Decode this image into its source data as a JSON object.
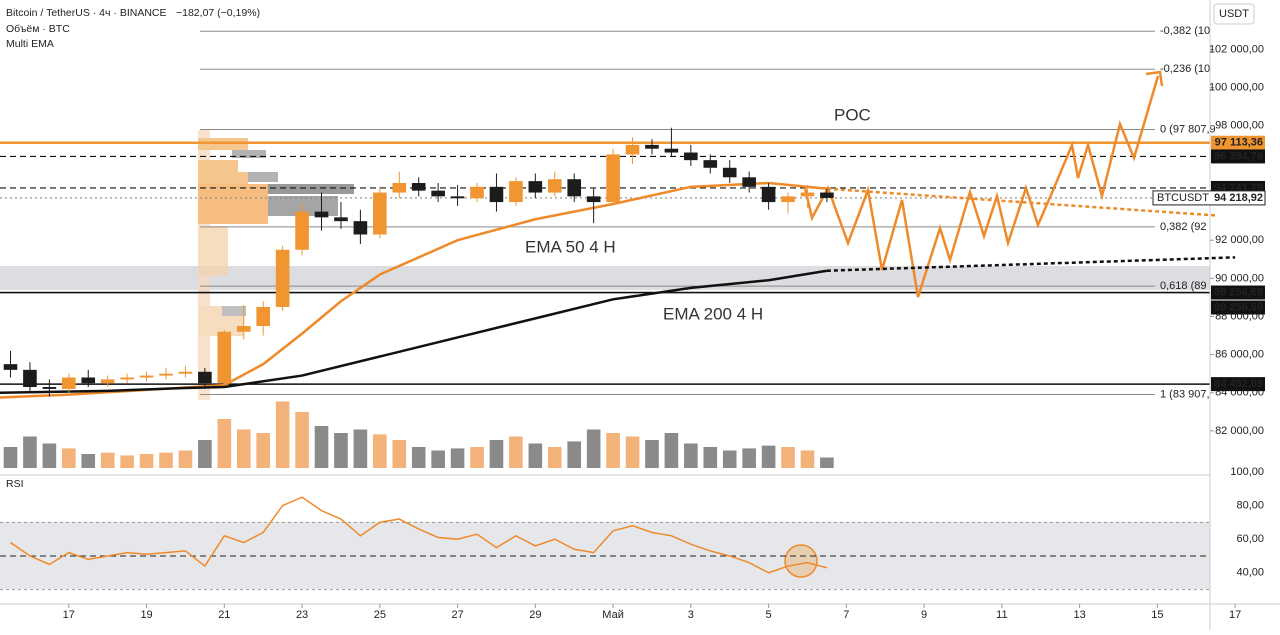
{
  "chart_data": {
    "type": "candlestick",
    "header": {
      "symbol": "Bitcoin / TetherUS · 4ч · BINANCE",
      "change": "−182,07 (−0,19%)",
      "volume_title": "Объём · BTC",
      "ema_title": "Multi EMA",
      "rsi_title": "RSI",
      "currency": "USDT"
    },
    "xlim": [
      15.23,
      48
    ],
    "xticks": [
      {
        "value": 17,
        "label": "17"
      },
      {
        "value": 19,
        "label": "19"
      },
      {
        "value": 21,
        "label": "21"
      },
      {
        "value": 23,
        "label": "23"
      },
      {
        "value": 25,
        "label": "25"
      },
      {
        "value": 27,
        "label": "27"
      },
      {
        "value": 29,
        "label": "29"
      },
      {
        "value": 31,
        "label": "Май"
      },
      {
        "value": 33,
        "label": "3"
      },
      {
        "value": 35,
        "label": "5"
      },
      {
        "value": 37,
        "label": "7"
      },
      {
        "value": 39,
        "label": "9"
      },
      {
        "value": 41,
        "label": "11"
      },
      {
        "value": 43,
        "label": "13"
      },
      {
        "value": 45,
        "label": "15"
      },
      {
        "value": 47,
        "label": "17"
      }
    ],
    "ylim": [
      80000,
      104600
    ],
    "yticks": [
      {
        "value": 102000,
        "label": "102 000,00"
      },
      {
        "value": 100000,
        "label": "100 000,00"
      },
      {
        "value": 98000,
        "label": "98 000,00"
      },
      {
        "value": 92000,
        "label": "92 000,00"
      },
      {
        "value": 90000,
        "label": "90 000,00"
      },
      {
        "value": 88000,
        "label": "88 000,00"
      },
      {
        "value": 86000,
        "label": "86 000,00"
      },
      {
        "value": 84000,
        "label": "84 000,00"
      },
      {
        "value": 82000,
        "label": "82 000,00"
      }
    ],
    "x": [
      15.5,
      16,
      16.5,
      17,
      17.5,
      18,
      18.5,
      19,
      19.5,
      20,
      20.5,
      21,
      21.5,
      22,
      22.5,
      23,
      23.5,
      24,
      24.5,
      25,
      25.5,
      26,
      26.5,
      27,
      27.5,
      28,
      28.5,
      29,
      29.5,
      30,
      30.5,
      31,
      31.5,
      32,
      32.5,
      33,
      33.5,
      34,
      34.5,
      35,
      35.5,
      36,
      36.5
    ],
    "open": [
      85500,
      85200,
      84300,
      84200,
      84800,
      84500,
      84700,
      84800,
      84900,
      85000,
      85100,
      84500,
      87200,
      87500,
      88500,
      91500,
      93500,
      93200,
      93000,
      92300,
      94500,
      95000,
      94600,
      94300,
      94200,
      94800,
      94000,
      95100,
      94500,
      95200,
      94300,
      94000,
      96500,
      97000,
      96800,
      96600,
      96200,
      95800,
      95300,
      94800,
      94000,
      94300,
      94500
    ],
    "high": [
      86200,
      85600,
      84700,
      85000,
      85200,
      84900,
      85000,
      85100,
      85300,
      85400,
      85300,
      87300,
      88600,
      88800,
      91700,
      94000,
      94500,
      94000,
      93600,
      94800,
      95600,
      95300,
      95000,
      94900,
      95000,
      95500,
      95300,
      95500,
      95600,
      95500,
      94700,
      96800,
      97400,
      97300,
      97900,
      97000,
      96500,
      96200,
      95600,
      95000,
      94500,
      94900,
      94700
    ],
    "low": [
      84800,
      84000,
      83800,
      84000,
      84300,
      84300,
      84500,
      84600,
      84700,
      84800,
      84200,
      84400,
      86800,
      87000,
      88300,
      91200,
      92500,
      92600,
      91800,
      92100,
      94200,
      94300,
      94000,
      93800,
      94000,
      93500,
      93800,
      94200,
      94300,
      94000,
      92900,
      93900,
      96000,
      96500,
      96400,
      95900,
      95500,
      95000,
      94500,
      93600,
      93400,
      93700,
      94000
    ],
    "close": [
      85200,
      84300,
      84200,
      84800,
      84500,
      84700,
      84800,
      84900,
      85000,
      85100,
      84500,
      87200,
      87500,
      88500,
      91500,
      93500,
      93200,
      93000,
      92300,
      94500,
      95000,
      94600,
      94300,
      94200,
      94800,
      94000,
      95100,
      94500,
      95200,
      94300,
      94000,
      96500,
      97000,
      96800,
      96600,
      96200,
      95800,
      95300,
      94800,
      94000,
      94300,
      94500,
      94218
    ],
    "up_color": "#f0952f",
    "down_color": "#1c1c1c",
    "ema": [
      {
        "name": "EMA 50 4 H",
        "color": "#ef8a2a",
        "x": [
          15.23,
          17,
          19,
          21,
          22,
          23,
          24,
          25,
          27,
          29,
          31,
          33,
          35,
          36.5
        ],
        "values": [
          83750,
          83900,
          84150,
          84400,
          85500,
          87100,
          88800,
          90200,
          92000,
          93100,
          93900,
          94800,
          95000,
          94700
        ],
        "ext_x": [
          36.5,
          46.5
        ],
        "ext_values": [
          94700,
          93300
        ]
      },
      {
        "name": "EMA 200 4 H",
        "color": "#111111",
        "x": [
          15.23,
          18,
          20,
          21,
          23,
          25,
          27,
          29,
          31,
          33,
          35,
          36.5
        ],
        "values": [
          84000,
          84100,
          84250,
          84300,
          84900,
          85900,
          86900,
          87900,
          88900,
          89500,
          89900,
          90400
        ],
        "ext_x": [
          36.5,
          47
        ],
        "ext_values": [
          90400,
          91100
        ]
      }
    ],
    "price_levels": [
      {
        "value": 97113.36,
        "label": "97 113,36",
        "color": "#f0952f",
        "style": "solid",
        "count": 1
      },
      {
        "value": 96394.76,
        "label": "96 394,76",
        "color": "#111111",
        "style": "dashed",
        "count": 1
      },
      {
        "value": 94741.79,
        "label": "94 741,79",
        "color": "#111111",
        "style": "dashed",
        "count": 1
      },
      {
        "value": 94218.92,
        "label": "94 218,92",
        "name": "BTCUSDT",
        "color": "#ffffff",
        "style": "dotted",
        "count": 1
      },
      {
        "value": 89256.69,
        "label": "89 256,69",
        "color": "#111111",
        "style": "solid",
        "count": 2
      },
      {
        "value": 84452.09,
        "label": "84 452,09",
        "color": "#111111",
        "style": "solid",
        "count": 1
      }
    ],
    "fib_levels": [
      {
        "value": 102960,
        "label": "-0,382 (10"
      },
      {
        "value": 100970,
        "label": "-0,236 (10"
      },
      {
        "value": 97807.9,
        "label": "0 (97 807,9"
      },
      {
        "value": 92700,
        "label": "0,382 (92"
      },
      {
        "value": 89590,
        "label": "0,618 (89"
      },
      {
        "value": 83907,
        "label": "1 (83 907,"
      }
    ],
    "annotations": [
      "POC",
      "EMA 50 4 H",
      "EMA 200 4 H"
    ],
    "volume": {
      "vlim": [
        0,
        100
      ],
      "values": [
        30,
        45,
        35,
        28,
        20,
        22,
        18,
        20,
        22,
        25,
        40,
        70,
        55,
        50,
        95,
        80,
        60,
        50,
        55,
        48,
        40,
        30,
        25,
        28,
        30,
        40,
        45,
        35,
        30,
        38,
        55,
        50,
        45,
        40,
        50,
        35,
        30,
        25,
        28,
        32,
        30,
        25,
        15
      ]
    },
    "rsi": {
      "ylim": [
        22,
        100
      ],
      "yticks": [
        {
          "value": 100,
          "label": "100,00"
        },
        {
          "value": 80,
          "label": "80,00"
        },
        {
          "value": 60,
          "label": "60,00"
        },
        {
          "value": 40,
          "label": "40,00"
        }
      ],
      "band": [
        30,
        70
      ],
      "mid": 50,
      "color": "#ef8a2a",
      "values": [
        58,
        50,
        45,
        52,
        48,
        50,
        52,
        51,
        52,
        53,
        44,
        62,
        58,
        64,
        80,
        85,
        77,
        72,
        62,
        70,
        72,
        66,
        61,
        60,
        63,
        55,
        62,
        56,
        60,
        54,
        52,
        65,
        68,
        64,
        62,
        57,
        53,
        50,
        46,
        40,
        44,
        46,
        43
      ]
    }
  }
}
